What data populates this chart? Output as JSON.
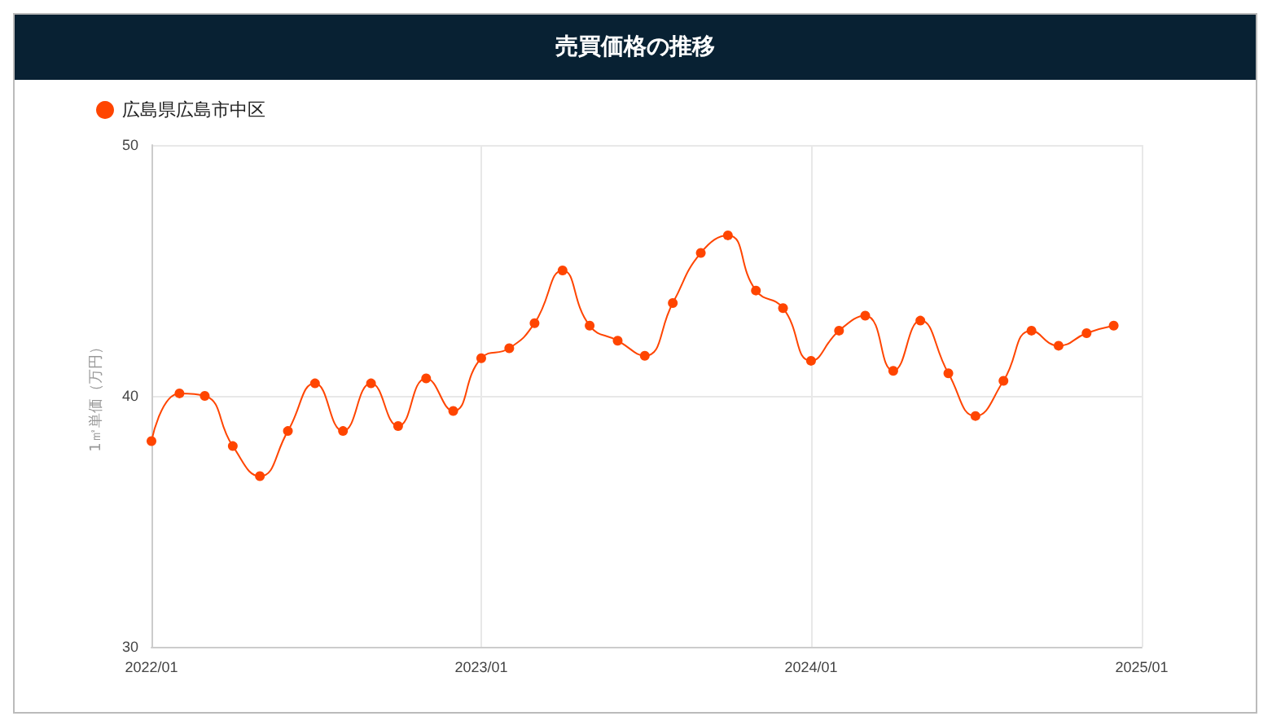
{
  "chart_data": {
    "type": "line",
    "title": "売買価格の推移",
    "ylabel": "1㎡単価（万円）",
    "x": [
      "2022-01",
      "2022-02",
      "2022-03",
      "2022-04",
      "2022-05",
      "2022-06",
      "2022-07",
      "2022-08",
      "2022-09",
      "2022-10",
      "2022-11",
      "2022-12",
      "2023-01",
      "2023-02",
      "2023-03",
      "2023-04",
      "2023-05",
      "2023-06",
      "2023-07",
      "2023-08",
      "2023-09",
      "2023-10",
      "2023-11",
      "2023-12",
      "2024-01",
      "2024-02",
      "2024-03",
      "2024-04",
      "2024-05",
      "2024-06",
      "2024-07",
      "2024-08",
      "2024-09",
      "2024-10",
      "2024-11",
      "2024-12"
    ],
    "series": [
      {
        "name": "広島県広島市中区",
        "color": "#ff4500",
        "values": [
          38.2,
          40.1,
          40.0,
          38.0,
          36.8,
          38.6,
          40.5,
          38.6,
          40.5,
          38.8,
          40.7,
          39.4,
          41.5,
          41.9,
          42.9,
          45.0,
          42.8,
          42.2,
          41.6,
          43.7,
          45.7,
          46.4,
          44.2,
          43.5,
          41.4,
          42.6,
          43.2,
          41.0,
          43.0,
          40.9,
          39.2,
          40.6,
          42.6,
          42.0,
          42.5,
          42.8
        ]
      }
    ],
    "xlim": [
      "2022-01",
      "2025-01"
    ],
    "xticks": [
      {
        "value": "2022-01",
        "label": "2022/01"
      },
      {
        "value": "2023-01",
        "label": "2023/01"
      },
      {
        "value": "2024-01",
        "label": "2024/01"
      },
      {
        "value": "2025-01",
        "label": "2025/01"
      }
    ],
    "ylim": [
      30,
      50
    ],
    "yticks": [
      30,
      40,
      50
    ],
    "grid": true,
    "legend": "top left",
    "marker": "circle",
    "line_style": "solid"
  }
}
